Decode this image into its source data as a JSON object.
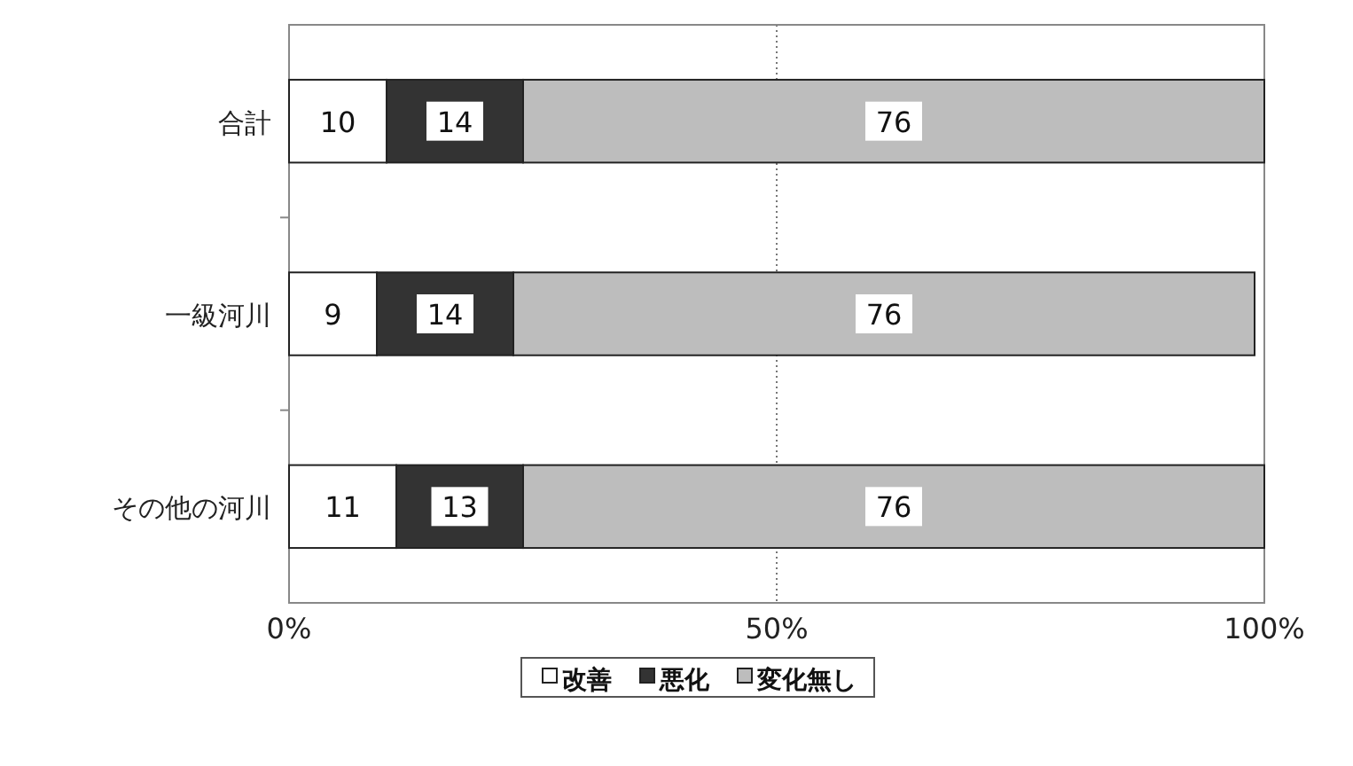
{
  "chart_data": {
    "type": "bar",
    "orientation": "horizontal",
    "stacked": true,
    "categories": [
      "合計",
      "一級河川",
      "その他の河川"
    ],
    "series": [
      {
        "name": "改善",
        "color": "#ffffff",
        "values": [
          10,
          9,
          11
        ]
      },
      {
        "name": "悪化",
        "color": "#333333",
        "values": [
          14,
          14,
          13
        ]
      },
      {
        "name": "変化無し",
        "color": "#bdbdbd",
        "values": [
          76,
          76,
          76
        ]
      }
    ],
    "xlim": [
      0,
      100
    ],
    "xticks": [
      {
        "value": 0,
        "label": "0%"
      },
      {
        "value": 50,
        "label": "50%"
      },
      {
        "value": 100,
        "label": "100%"
      }
    ],
    "grid": "x",
    "legend": "bottom",
    "data_labels": true
  }
}
